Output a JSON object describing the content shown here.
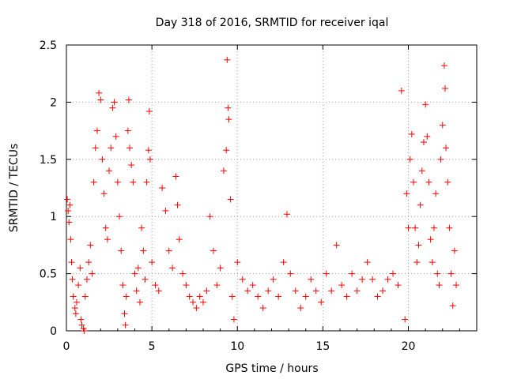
{
  "chart_data": {
    "type": "scatter",
    "title": "Day 318 of 2016, SRMTID for receiver iqal",
    "xlabel": "GPS time / hours",
    "ylabel": "SRMTID / TECUs",
    "xlim": [
      0,
      24
    ],
    "ylim": [
      0,
      2.5
    ],
    "x_ticks": [
      0,
      5,
      10,
      15,
      20
    ],
    "x_tick_labels": [
      "0",
      "5",
      "10",
      "15",
      "20"
    ],
    "y_ticks": [
      0,
      0.5,
      1,
      1.5,
      2,
      2.5
    ],
    "y_tick_labels": [
      "0",
      "0.5",
      "1",
      "1.5",
      "2",
      "2.5"
    ],
    "grid": true,
    "marker": "+",
    "color": "#ff0000",
    "series": [
      {
        "name": "SRMTID",
        "points": [
          [
            0.05,
            1.15
          ],
          [
            0.1,
            1.05
          ],
          [
            0.15,
            0.95
          ],
          [
            0.2,
            1.1
          ],
          [
            0.25,
            0.8
          ],
          [
            0.3,
            0.6
          ],
          [
            0.35,
            0.45
          ],
          [
            0.4,
            0.3
          ],
          [
            0.5,
            0.2
          ],
          [
            0.55,
            0.15
          ],
          [
            0.6,
            0.25
          ],
          [
            0.7,
            0.4
          ],
          [
            0.8,
            0.55
          ],
          [
            0.85,
            0.1
          ],
          [
            0.9,
            0.05
          ],
          [
            1.0,
            0.02
          ],
          [
            1.05,
            0.0
          ],
          [
            1.1,
            0.3
          ],
          [
            1.2,
            0.45
          ],
          [
            1.3,
            0.6
          ],
          [
            1.4,
            0.75
          ],
          [
            1.5,
            0.5
          ],
          [
            1.6,
            1.3
          ],
          [
            1.7,
            1.6
          ],
          [
            1.8,
            1.75
          ],
          [
            1.9,
            2.08
          ],
          [
            2.0,
            2.02
          ],
          [
            2.1,
            1.5
          ],
          [
            2.2,
            1.2
          ],
          [
            2.3,
            0.9
          ],
          [
            2.4,
            0.8
          ],
          [
            2.5,
            1.4
          ],
          [
            2.6,
            1.6
          ],
          [
            2.7,
            1.95
          ],
          [
            2.8,
            2.0
          ],
          [
            2.9,
            1.7
          ],
          [
            3.0,
            1.3
          ],
          [
            3.1,
            1.0
          ],
          [
            3.2,
            0.7
          ],
          [
            3.3,
            0.4
          ],
          [
            3.4,
            0.15
          ],
          [
            3.45,
            0.05
          ],
          [
            3.5,
            0.3
          ],
          [
            3.6,
            1.75
          ],
          [
            3.65,
            2.02
          ],
          [
            3.7,
            1.6
          ],
          [
            3.8,
            1.45
          ],
          [
            3.9,
            1.3
          ],
          [
            4.0,
            0.5
          ],
          [
            4.1,
            0.35
          ],
          [
            4.2,
            0.55
          ],
          [
            4.3,
            0.25
          ],
          [
            4.4,
            0.9
          ],
          [
            4.5,
            0.7
          ],
          [
            4.6,
            0.45
          ],
          [
            4.7,
            1.3
          ],
          [
            4.8,
            1.58
          ],
          [
            4.85,
            1.92
          ],
          [
            4.9,
            1.5
          ],
          [
            5.0,
            0.6
          ],
          [
            5.2,
            0.4
          ],
          [
            5.4,
            0.35
          ],
          [
            5.6,
            1.25
          ],
          [
            5.8,
            1.05
          ],
          [
            6.0,
            0.7
          ],
          [
            6.2,
            0.55
          ],
          [
            6.4,
            1.35
          ],
          [
            6.5,
            1.1
          ],
          [
            6.6,
            0.8
          ],
          [
            6.8,
            0.5
          ],
          [
            7.0,
            0.4
          ],
          [
            7.2,
            0.3
          ],
          [
            7.4,
            0.25
          ],
          [
            7.6,
            0.2
          ],
          [
            7.8,
            0.3
          ],
          [
            8.0,
            0.25
          ],
          [
            8.2,
            0.35
          ],
          [
            8.4,
            1.0
          ],
          [
            8.6,
            0.7
          ],
          [
            8.8,
            0.4
          ],
          [
            9.0,
            0.55
          ],
          [
            9.2,
            1.4
          ],
          [
            9.35,
            1.58
          ],
          [
            9.4,
            2.37
          ],
          [
            9.45,
            1.95
          ],
          [
            9.5,
            1.85
          ],
          [
            9.6,
            1.15
          ],
          [
            9.7,
            0.3
          ],
          [
            9.8,
            0.1
          ],
          [
            10.0,
            0.6
          ],
          [
            10.3,
            0.45
          ],
          [
            10.6,
            0.35
          ],
          [
            10.9,
            0.4
          ],
          [
            11.2,
            0.3
          ],
          [
            11.5,
            0.2
          ],
          [
            11.8,
            0.35
          ],
          [
            12.1,
            0.45
          ],
          [
            12.4,
            0.3
          ],
          [
            12.7,
            0.6
          ],
          [
            12.9,
            1.02
          ],
          [
            13.1,
            0.5
          ],
          [
            13.4,
            0.35
          ],
          [
            13.7,
            0.2
          ],
          [
            14.0,
            0.3
          ],
          [
            14.3,
            0.45
          ],
          [
            14.6,
            0.35
          ],
          [
            14.9,
            0.25
          ],
          [
            15.2,
            0.5
          ],
          [
            15.5,
            0.35
          ],
          [
            15.8,
            0.75
          ],
          [
            16.1,
            0.4
          ],
          [
            16.4,
            0.3
          ],
          [
            16.7,
            0.5
          ],
          [
            17.0,
            0.35
          ],
          [
            17.3,
            0.45
          ],
          [
            17.6,
            0.6
          ],
          [
            17.9,
            0.45
          ],
          [
            18.2,
            0.3
          ],
          [
            18.5,
            0.35
          ],
          [
            18.8,
            0.45
          ],
          [
            19.1,
            0.5
          ],
          [
            19.4,
            0.4
          ],
          [
            19.6,
            2.1
          ],
          [
            19.8,
            0.1
          ],
          [
            19.9,
            1.2
          ],
          [
            20.0,
            0.9
          ],
          [
            20.1,
            1.5
          ],
          [
            20.2,
            1.72
          ],
          [
            20.3,
            1.3
          ],
          [
            20.4,
            0.9
          ],
          [
            20.5,
            0.6
          ],
          [
            20.6,
            0.75
          ],
          [
            20.7,
            1.1
          ],
          [
            20.8,
            1.4
          ],
          [
            20.9,
            1.65
          ],
          [
            21.0,
            1.98
          ],
          [
            21.1,
            1.7
          ],
          [
            21.2,
            1.3
          ],
          [
            21.3,
            0.8
          ],
          [
            21.4,
            0.6
          ],
          [
            21.5,
            0.9
          ],
          [
            21.6,
            1.2
          ],
          [
            21.7,
            0.5
          ],
          [
            21.8,
            0.4
          ],
          [
            21.9,
            1.5
          ],
          [
            22.0,
            1.8
          ],
          [
            22.1,
            2.32
          ],
          [
            22.15,
            2.12
          ],
          [
            22.2,
            1.6
          ],
          [
            22.3,
            1.3
          ],
          [
            22.4,
            0.9
          ],
          [
            22.5,
            0.5
          ],
          [
            22.6,
            0.22
          ],
          [
            22.7,
            0.7
          ],
          [
            22.8,
            0.4
          ]
        ]
      }
    ]
  }
}
